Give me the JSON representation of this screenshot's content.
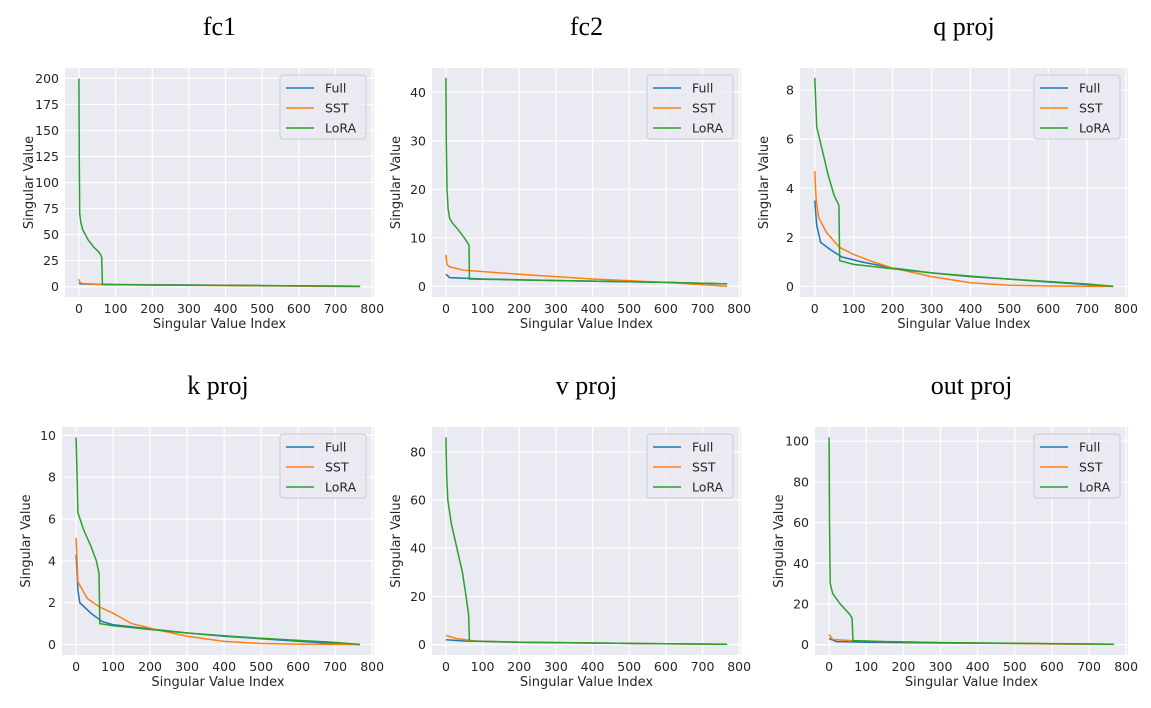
{
  "chart_data": [
    {
      "type": "line",
      "title": "fc1",
      "xlabel": "Singular Value Index",
      "ylabel": "Singular Value",
      "xlim": [
        -38,
        805
      ],
      "ylim": [
        -10,
        210
      ],
      "xticks": [
        0,
        100,
        200,
        300,
        400,
        500,
        600,
        700,
        800
      ],
      "yticks": [
        0,
        25,
        50,
        75,
        100,
        125,
        150,
        175,
        200
      ],
      "grid": true,
      "legend": "top-right",
      "series": [
        {
          "name": "Full",
          "color": "#1f77b4",
          "x": [
            0,
            10,
            100,
            300,
            500,
            767
          ],
          "y": [
            3,
            2.5,
            2,
            1.5,
            1,
            0.3
          ]
        },
        {
          "name": "SST",
          "color": "#ff7f0e",
          "x": [
            0,
            3,
            10,
            60,
            200,
            400,
            767
          ],
          "y": [
            7,
            4,
            3,
            2,
            1.5,
            1,
            0
          ]
        },
        {
          "name": "LoRA",
          "color": "#2ca02c",
          "x": [
            0,
            1,
            2,
            5,
            10,
            25,
            40,
            55,
            60,
            62,
            64,
            100,
            200,
            500,
            767
          ],
          "y": [
            200,
            120,
            70,
            62,
            55,
            45,
            38,
            33,
            30,
            28,
            2,
            1.8,
            1.5,
            1,
            0.3
          ]
        }
      ]
    },
    {
      "type": "line",
      "title": "fc2",
      "xlabel": "Singular Value Index",
      "ylabel": "Singular Value",
      "xlim": [
        -38,
        805
      ],
      "ylim": [
        -2.2,
        45
      ],
      "xticks": [
        0,
        100,
        200,
        300,
        400,
        500,
        600,
        700,
        800
      ],
      "yticks": [
        0,
        10,
        20,
        30,
        40
      ],
      "grid": true,
      "legend": "top-right",
      "series": [
        {
          "name": "Full",
          "color": "#1f77b4",
          "x": [
            0,
            10,
            100,
            300,
            600,
            767
          ],
          "y": [
            2.5,
            1.8,
            1.5,
            1.2,
            0.8,
            0.5
          ]
        },
        {
          "name": "SST",
          "color": "#ff7f0e",
          "x": [
            0,
            3,
            10,
            50,
            200,
            400,
            600,
            767
          ],
          "y": [
            6.5,
            4.5,
            4,
            3.3,
            2.5,
            1.5,
            0.8,
            0
          ]
        },
        {
          "name": "LoRA",
          "color": "#2ca02c",
          "x": [
            0,
            1,
            3,
            6,
            10,
            20,
            30,
            50,
            63,
            64,
            200,
            600,
            767
          ],
          "y": [
            43,
            30,
            20,
            16,
            14,
            12.8,
            12,
            10,
            8.5,
            1.5,
            1.3,
            0.8,
            0.5
          ]
        }
      ]
    },
    {
      "type": "line",
      "title": "q proj",
      "xlabel": "Singular Value Index",
      "ylabel": "Singular Value",
      "xlim": [
        -38,
        805
      ],
      "ylim": [
        -0.43,
        8.9
      ],
      "xticks": [
        0,
        100,
        200,
        300,
        400,
        500,
        600,
        700,
        800
      ],
      "yticks": [
        0,
        2,
        4,
        6,
        8
      ],
      "grid": true,
      "legend": "top-right",
      "series": [
        {
          "name": "Full",
          "color": "#1f77b4",
          "x": [
            0,
            5,
            15,
            40,
            70,
            120,
            200,
            300,
            400,
            500,
            600,
            700,
            767
          ],
          "y": [
            3.5,
            2.5,
            1.8,
            1.5,
            1.2,
            1.0,
            0.75,
            0.55,
            0.4,
            0.3,
            0.18,
            0.08,
            0
          ]
        },
        {
          "name": "SST",
          "color": "#ff7f0e",
          "x": [
            0,
            3,
            10,
            30,
            63,
            100,
            150,
            200,
            300,
            400,
            500,
            600,
            767
          ],
          "y": [
            4.7,
            3.6,
            2.8,
            2.2,
            1.6,
            1.3,
            1.0,
            0.75,
            0.4,
            0.15,
            0.05,
            0.02,
            0
          ]
        },
        {
          "name": "LoRA",
          "color": "#2ca02c",
          "x": [
            0,
            5,
            20,
            35,
            50,
            62,
            64,
            100,
            200,
            300,
            400,
            500,
            600,
            700,
            767
          ],
          "y": [
            8.5,
            6.5,
            5.5,
            4.5,
            3.7,
            3.3,
            1.05,
            0.9,
            0.72,
            0.55,
            0.42,
            0.3,
            0.2,
            0.1,
            0
          ]
        }
      ]
    },
    {
      "type": "line",
      "title": "k proj",
      "xlabel": "Singular Value Index",
      "ylabel": "Singular Value",
      "xlim": [
        -38,
        805
      ],
      "ylim": [
        -0.5,
        10.4
      ],
      "xticks": [
        0,
        100,
        200,
        300,
        400,
        500,
        600,
        700,
        800
      ],
      "yticks": [
        0,
        2,
        4,
        6,
        8,
        10
      ],
      "grid": true,
      "legend": "top-right",
      "series": [
        {
          "name": "Full",
          "color": "#1f77b4",
          "x": [
            0,
            5,
            10,
            40,
            70,
            100,
            200,
            300,
            400,
            500,
            600,
            700,
            767
          ],
          "y": [
            4.3,
            2.6,
            2,
            1.5,
            1.1,
            0.95,
            0.75,
            0.55,
            0.4,
            0.28,
            0.16,
            0.05,
            0
          ]
        },
        {
          "name": "SST",
          "color": "#ff7f0e",
          "x": [
            0,
            5,
            30,
            63,
            100,
            150,
            220,
            300,
            400,
            500,
            600,
            767
          ],
          "y": [
            5.1,
            3,
            2.2,
            1.8,
            1.5,
            1.0,
            0.7,
            0.4,
            0.15,
            0.05,
            0.02,
            0
          ]
        },
        {
          "name": "LoRA",
          "color": "#2ca02c",
          "x": [
            0,
            5,
            20,
            40,
            55,
            62,
            64,
            100,
            200,
            300,
            400,
            500,
            600,
            700,
            767
          ],
          "y": [
            9.9,
            6.3,
            5.5,
            4.7,
            4.0,
            3.4,
            1.0,
            0.9,
            0.72,
            0.55,
            0.42,
            0.3,
            0.2,
            0.1,
            0
          ]
        }
      ]
    },
    {
      "type": "line",
      "title": "v proj",
      "xlabel": "Singular Value Index",
      "ylabel": "Singular Value",
      "xlim": [
        -38,
        805
      ],
      "ylim": [
        -4.3,
        90.3
      ],
      "xticks": [
        0,
        100,
        200,
        300,
        400,
        500,
        600,
        700,
        800
      ],
      "yticks": [
        0,
        20,
        40,
        60,
        80
      ],
      "grid": true,
      "legend": "top-right",
      "series": [
        {
          "name": "Full",
          "color": "#1f77b4",
          "x": [
            0,
            50,
            200,
            500,
            767
          ],
          "y": [
            2,
            1.5,
            1,
            0.5,
            0.2
          ]
        },
        {
          "name": "SST",
          "color": "#ff7f0e",
          "x": [
            0,
            30,
            80,
            200,
            500,
            767
          ],
          "y": [
            3.8,
            2.5,
            1.5,
            1,
            0.5,
            0.1
          ]
        },
        {
          "name": "LoRA",
          "color": "#2ca02c",
          "x": [
            0,
            2,
            5,
            15,
            30,
            45,
            55,
            62,
            64,
            200,
            500,
            767
          ],
          "y": [
            86,
            70,
            60,
            50,
            40,
            30,
            20,
            12,
            1.5,
            1,
            0.5,
            0.2
          ]
        }
      ]
    },
    {
      "type": "line",
      "title": "out proj",
      "xlabel": "Singular Value Index",
      "ylabel": "Singular Value",
      "xlim": [
        -38,
        805
      ],
      "ylim": [
        -5.1,
        107
      ],
      "xticks": [
        0,
        100,
        200,
        300,
        400,
        500,
        600,
        700,
        800
      ],
      "yticks": [
        0,
        20,
        40,
        60,
        80,
        100
      ],
      "grid": true,
      "legend": "top-right",
      "series": [
        {
          "name": "Full",
          "color": "#1f77b4",
          "x": [
            0,
            20,
            100,
            300,
            600,
            767
          ],
          "y": [
            3,
            1.5,
            1.2,
            0.8,
            0.4,
            0.2
          ]
        },
        {
          "name": "SST",
          "color": "#ff7f0e",
          "x": [
            0,
            10,
            60,
            150,
            300,
            600,
            767
          ],
          "y": [
            5,
            2.5,
            2,
            1.5,
            1,
            0.3,
            0.1
          ]
        },
        {
          "name": "LoRA",
          "color": "#2ca02c",
          "x": [
            0,
            1,
            3,
            10,
            30,
            55,
            62,
            64,
            150,
            300,
            600,
            767
          ],
          "y": [
            102,
            60,
            30,
            25,
            20,
            15,
            13,
            2,
            1.5,
            1,
            0.5,
            0.2
          ]
        }
      ]
    }
  ]
}
